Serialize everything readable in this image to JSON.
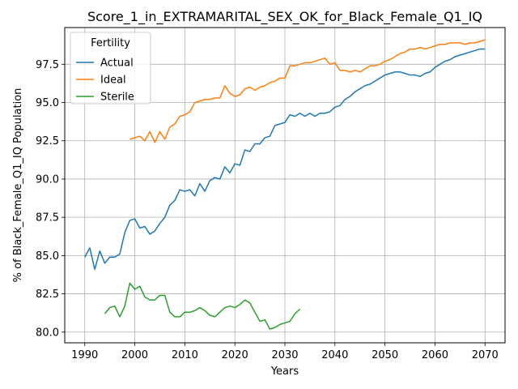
{
  "chart_data": {
    "type": "line",
    "title": "Score_1_in_EXTRAMARITAL_SEX_OK_for_Black_Female_Q1_IQ",
    "xlabel": "Years",
    "ylabel": "% of Black_Female_Q1_IQ Population",
    "xlim": [
      1986,
      2074
    ],
    "ylim": [
      79.3,
      99.9
    ],
    "xticks": [
      1990,
      2000,
      2010,
      2020,
      2030,
      2040,
      2050,
      2060,
      2070
    ],
    "yticks": [
      80.0,
      82.5,
      85.0,
      87.5,
      90.0,
      92.5,
      95.0,
      97.5
    ],
    "ytick_labels": [
      "80.0",
      "82.5",
      "85.0",
      "87.5",
      "90.0",
      "92.5",
      "95.0",
      "97.5"
    ],
    "grid": true,
    "legend": {
      "title": "Fertility",
      "position": "top-left"
    },
    "series": [
      {
        "name": "Actual",
        "color": "#1f77b4",
        "x": [
          1990,
          1991,
          1992,
          1993,
          1994,
          1995,
          1996,
          1997,
          1998,
          1999,
          2000,
          2001,
          2002,
          2003,
          2004,
          2005,
          2006,
          2007,
          2008,
          2009,
          2010,
          2011,
          2012,
          2013,
          2014,
          2015,
          2016,
          2017,
          2018,
          2019,
          2020,
          2021,
          2022,
          2023,
          2024,
          2025,
          2026,
          2027,
          2028,
          2029,
          2030,
          2031,
          2032,
          2033,
          2034,
          2035,
          2036,
          2037,
          2038,
          2039,
          2040,
          2041,
          2042,
          2043,
          2044,
          2045,
          2046,
          2047,
          2048,
          2049,
          2050,
          2051,
          2052,
          2053,
          2054,
          2055,
          2056,
          2057,
          2058,
          2059,
          2060,
          2061,
          2062,
          2063,
          2064,
          2065,
          2066,
          2067,
          2068,
          2069,
          2070
        ],
        "values": [
          84.9,
          85.5,
          84.1,
          85.3,
          84.5,
          84.9,
          84.9,
          85.1,
          86.5,
          87.3,
          87.4,
          86.8,
          86.9,
          86.4,
          86.6,
          87.1,
          87.5,
          88.3,
          88.6,
          89.3,
          89.2,
          89.3,
          88.9,
          89.7,
          89.2,
          89.9,
          90.1,
          90.0,
          90.8,
          90.4,
          91.0,
          90.9,
          91.9,
          91.8,
          92.3,
          92.3,
          92.7,
          92.8,
          93.5,
          93.6,
          93.7,
          94.2,
          94.1,
          94.3,
          94.1,
          94.3,
          94.1,
          94.3,
          94.3,
          94.4,
          94.7,
          94.8,
          95.2,
          95.4,
          95.7,
          95.9,
          96.1,
          96.2,
          96.4,
          96.6,
          96.8,
          96.9,
          97.0,
          97.0,
          96.9,
          96.8,
          96.8,
          96.7,
          96.9,
          97.0,
          97.3,
          97.5,
          97.7,
          97.8,
          98.0,
          98.1,
          98.2,
          98.3,
          98.4,
          98.5,
          98.5
        ]
      },
      {
        "name": "Ideal",
        "color": "#ff7f0e",
        "x": [
          1999,
          2000,
          2001,
          2002,
          2003,
          2004,
          2005,
          2006,
          2007,
          2008,
          2009,
          2010,
          2011,
          2012,
          2013,
          2014,
          2015,
          2016,
          2017,
          2018,
          2019,
          2020,
          2021,
          2022,
          2023,
          2024,
          2025,
          2026,
          2027,
          2028,
          2029,
          2030,
          2031,
          2032,
          2033,
          2034,
          2035,
          2036,
          2037,
          2038,
          2039,
          2040,
          2041,
          2042,
          2043,
          2044,
          2045,
          2046,
          2047,
          2048,
          2049,
          2050,
          2051,
          2052,
          2053,
          2054,
          2055,
          2056,
          2057,
          2058,
          2059,
          2060,
          2061,
          2062,
          2063,
          2064,
          2065,
          2066,
          2067,
          2068,
          2069,
          2070
        ],
        "values": [
          92.6,
          92.7,
          92.8,
          92.5,
          93.1,
          92.4,
          93.1,
          92.6,
          93.4,
          93.6,
          94.1,
          94.2,
          94.4,
          95.0,
          95.1,
          95.2,
          95.2,
          95.3,
          95.3,
          96.1,
          95.6,
          95.4,
          95.5,
          95.9,
          96.0,
          95.8,
          96.0,
          96.1,
          96.3,
          96.4,
          96.6,
          96.6,
          97.4,
          97.4,
          97.5,
          97.6,
          97.6,
          97.7,
          97.8,
          97.9,
          97.5,
          97.6,
          97.1,
          97.1,
          97.0,
          97.1,
          97.0,
          97.2,
          97.4,
          97.4,
          97.5,
          97.7,
          97.8,
          98.0,
          98.2,
          98.3,
          98.5,
          98.5,
          98.6,
          98.5,
          98.6,
          98.7,
          98.8,
          98.8,
          98.9,
          98.9,
          98.9,
          98.8,
          98.9,
          98.9,
          99.0,
          99.1
        ]
      },
      {
        "name": "Sterile",
        "color": "#2ca02c",
        "x": [
          1994,
          1995,
          1996,
          1997,
          1998,
          1999,
          2000,
          2001,
          2002,
          2003,
          2004,
          2005,
          2006,
          2007,
          2008,
          2009,
          2010,
          2011,
          2012,
          2013,
          2014,
          2015,
          2016,
          2017,
          2018,
          2019,
          2020,
          2021,
          2022,
          2023,
          2024,
          2025,
          2026,
          2027,
          2028,
          2029,
          2030,
          2031,
          2032,
          2033
        ],
        "values": [
          81.2,
          81.6,
          81.7,
          81.0,
          81.7,
          83.2,
          82.8,
          83.0,
          82.3,
          82.1,
          82.1,
          82.4,
          82.4,
          81.3,
          81.0,
          81.0,
          81.3,
          81.3,
          81.4,
          81.6,
          81.4,
          81.1,
          81.0,
          81.3,
          81.6,
          81.7,
          81.6,
          81.8,
          82.1,
          81.9,
          81.3,
          80.7,
          80.8,
          80.2,
          80.3,
          80.5,
          80.6,
          80.7,
          81.2,
          81.5
        ]
      }
    ]
  }
}
